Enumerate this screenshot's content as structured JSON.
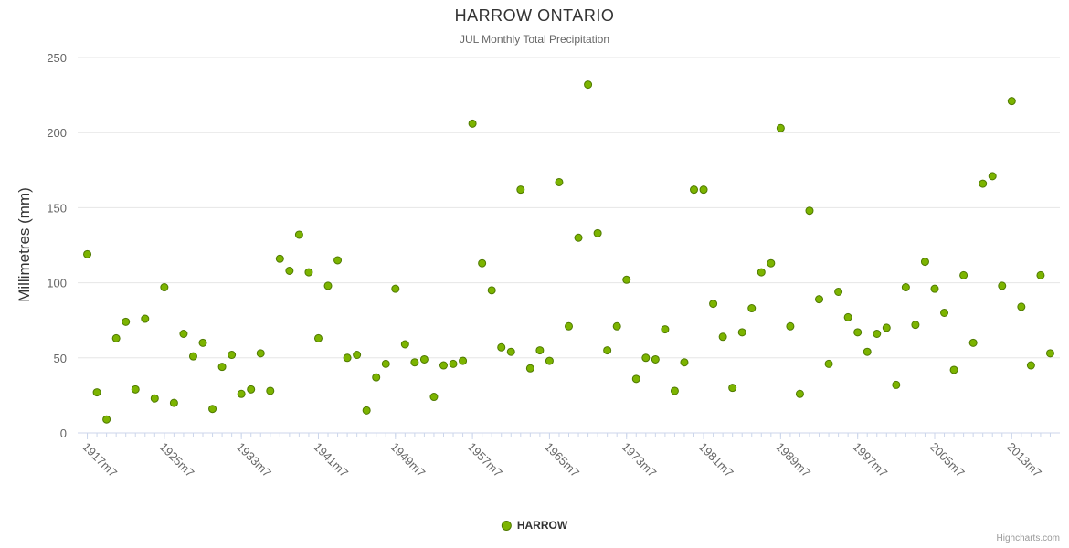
{
  "legend": {
    "label": "HARROW"
  },
  "credits": {
    "label": "Highcharts.com"
  },
  "colors": {
    "point_fill": "#7cb400",
    "point_stroke": "#4f7a00",
    "grid": "#e6e6e6",
    "axis_line": "#ccd6eb",
    "tick_label": "#666666",
    "title_text": "#333333",
    "subtitle_text": "#666666"
  },
  "chart_data": {
    "type": "scatter",
    "title": "HARROW ONTARIO",
    "subtitle": "JUL Monthly Total Precipitation",
    "xlabel": "",
    "ylabel": "Millimetres (mm)",
    "ylim": [
      0,
      250
    ],
    "ytick_interval": 50,
    "xlim": [
      1916,
      2018
    ],
    "xtick_labels": [
      "1917m7",
      "1925m7",
      "1933m7",
      "1941m7",
      "1949m7",
      "1957m7",
      "1965m7",
      "1973m7",
      "1981m7",
      "1989m7",
      "1997m7",
      "2005m7",
      "2013m7"
    ],
    "legend_position": "bottom",
    "grid": "horizontal",
    "series": [
      {
        "name": "HARROW",
        "points": [
          [
            1917,
            119
          ],
          [
            1918,
            27
          ],
          [
            1919,
            9
          ],
          [
            1920,
            63
          ],
          [
            1921,
            74
          ],
          [
            1922,
            29
          ],
          [
            1923,
            76
          ],
          [
            1924,
            23
          ],
          [
            1925,
            97
          ],
          [
            1926,
            20
          ],
          [
            1927,
            66
          ],
          [
            1928,
            51
          ],
          [
            1929,
            60
          ],
          [
            1930,
            16
          ],
          [
            1931,
            44
          ],
          [
            1932,
            52
          ],
          [
            1933,
            26
          ],
          [
            1934,
            29
          ],
          [
            1935,
            53
          ],
          [
            1936,
            28
          ],
          [
            1937,
            116
          ],
          [
            1938,
            108
          ],
          [
            1939,
            132
          ],
          [
            1940,
            107
          ],
          [
            1941,
            63
          ],
          [
            1942,
            98
          ],
          [
            1943,
            115
          ],
          [
            1944,
            50
          ],
          [
            1945,
            52
          ],
          [
            1946,
            15
          ],
          [
            1947,
            37
          ],
          [
            1948,
            46
          ],
          [
            1949,
            96
          ],
          [
            1950,
            59
          ],
          [
            1951,
            47
          ],
          [
            1952,
            49
          ],
          [
            1953,
            24
          ],
          [
            1954,
            45
          ],
          [
            1955,
            46
          ],
          [
            1956,
            48
          ],
          [
            1957,
            206
          ],
          [
            1958,
            113
          ],
          [
            1959,
            95
          ],
          [
            1960,
            57
          ],
          [
            1961,
            54
          ],
          [
            1962,
            162
          ],
          [
            1963,
            43
          ],
          [
            1964,
            55
          ],
          [
            1965,
            48
          ],
          [
            1966,
            167
          ],
          [
            1967,
            71
          ],
          [
            1968,
            130
          ],
          [
            1969,
            232
          ],
          [
            1970,
            133
          ],
          [
            1971,
            55
          ],
          [
            1972,
            71
          ],
          [
            1973,
            102
          ],
          [
            1974,
            36
          ],
          [
            1975,
            50
          ],
          [
            1976,
            49
          ],
          [
            1977,
            69
          ],
          [
            1978,
            28
          ],
          [
            1979,
            47
          ],
          [
            1980,
            162
          ],
          [
            1981,
            162
          ],
          [
            1982,
            86
          ],
          [
            1983,
            64
          ],
          [
            1984,
            30
          ],
          [
            1985,
            67
          ],
          [
            1986,
            83
          ],
          [
            1987,
            107
          ],
          [
            1988,
            113
          ],
          [
            1989,
            203
          ],
          [
            1990,
            71
          ],
          [
            1991,
            26
          ],
          [
            1992,
            148
          ],
          [
            1993,
            89
          ],
          [
            1994,
            46
          ],
          [
            1995,
            94
          ],
          [
            1996,
            77
          ],
          [
            1997,
            67
          ],
          [
            1998,
            54
          ],
          [
            1999,
            66
          ],
          [
            2000,
            70
          ],
          [
            2001,
            32
          ],
          [
            2002,
            97
          ],
          [
            2003,
            72
          ],
          [
            2004,
            114
          ],
          [
            2005,
            96
          ],
          [
            2006,
            80
          ],
          [
            2007,
            42
          ],
          [
            2008,
            105
          ],
          [
            2009,
            60
          ],
          [
            2010,
            166
          ],
          [
            2011,
            171
          ],
          [
            2012,
            98
          ],
          [
            2013,
            221
          ],
          [
            2014,
            84
          ],
          [
            2015,
            45
          ],
          [
            2016,
            105
          ],
          [
            2017,
            53
          ]
        ]
      }
    ]
  }
}
